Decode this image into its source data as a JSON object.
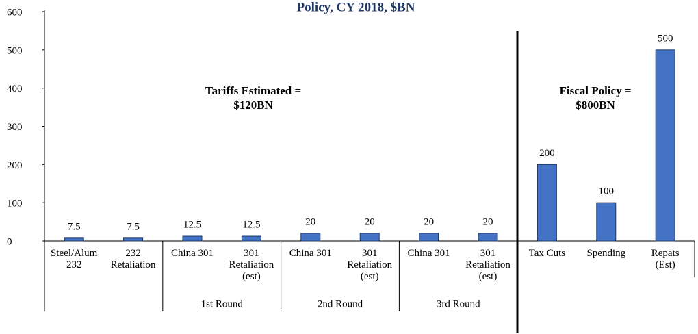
{
  "chart_data": {
    "type": "bar",
    "title": "Policy, CY 2018, $BN",
    "categories": [
      "Steel/Alum\n232",
      "232\nRetaliation",
      "China 301",
      "301\nRetaliation\n(est)",
      "China 301",
      "301\nRetaliation\n(est)",
      "China 301",
      "301\nRetaliation\n(est)",
      "Tax Cuts",
      "Spending",
      "Repats\n(Est)"
    ],
    "values": [
      7.5,
      7.5,
      12.5,
      12.5,
      20,
      20,
      20,
      20,
      200,
      100,
      500
    ],
    "color": "#4472c4",
    "group_labels": [
      "1st Round",
      "2nd Round",
      "3rd Round"
    ],
    "annotations": [
      "Tariffs Estimated =\n$120BN",
      "Fiscal Policy =\n$800BN"
    ],
    "ylim": [
      0,
      600
    ],
    "yticks": [
      0,
      100,
      200,
      300,
      400,
      500,
      600
    ],
    "grid": false
  }
}
